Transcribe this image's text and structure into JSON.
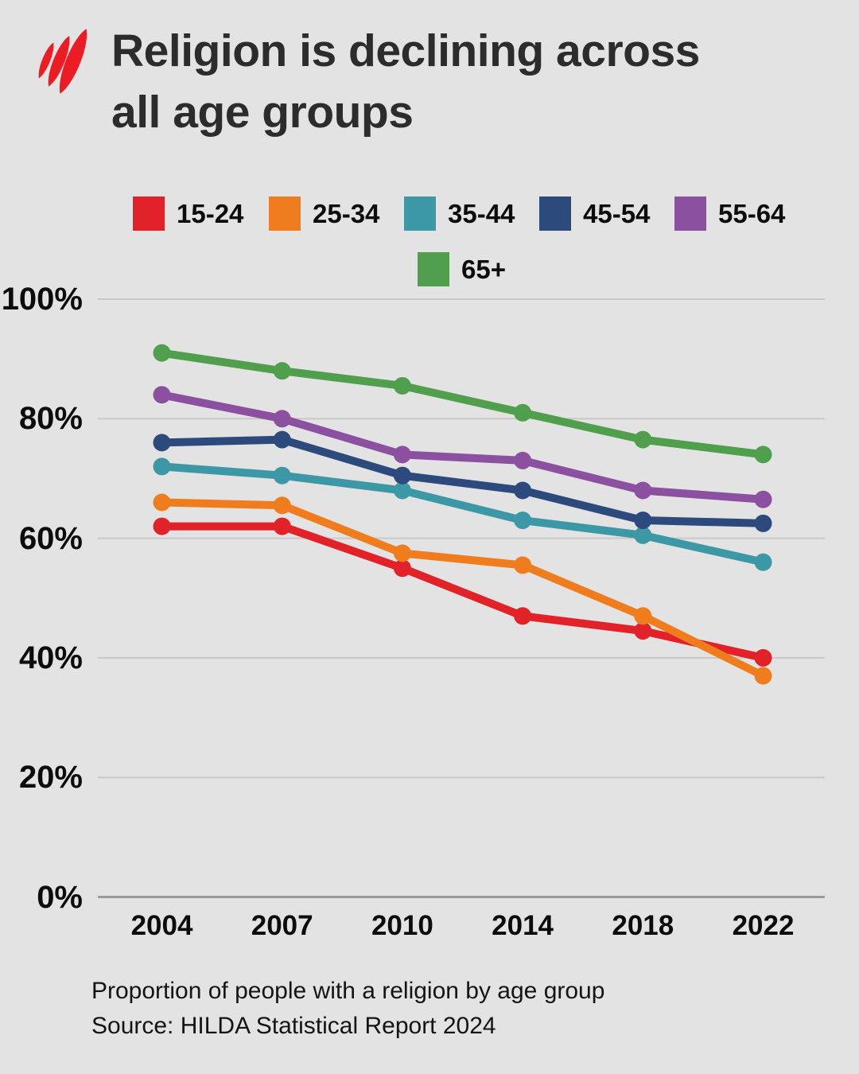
{
  "header": {
    "title_line1": "Religion is declining across",
    "title_line2": "all age groups",
    "logo_name": "sbs-logo"
  },
  "chart_data": {
    "type": "line",
    "title": "Religion is declining across all age groups",
    "xlabel": "",
    "ylabel": "",
    "ylim": [
      0,
      100
    ],
    "grid": true,
    "legend_position": "top",
    "categories": [
      "2004",
      "2007",
      "2010",
      "2014",
      "2018",
      "2022"
    ],
    "series": [
      {
        "name": "15-24",
        "color": "#e12229",
        "values": [
          62,
          62,
          55,
          47,
          44.5,
          40
        ]
      },
      {
        "name": "25-34",
        "color": "#ef7d1e",
        "values": [
          66,
          65.5,
          57.5,
          55.5,
          47,
          37
        ]
      },
      {
        "name": "35-44",
        "color": "#3d98a6",
        "values": [
          72,
          70.5,
          68,
          63,
          60.5,
          56
        ]
      },
      {
        "name": "45-54",
        "color": "#2c4a7c",
        "values": [
          76,
          76.5,
          70.5,
          68,
          63,
          62.5
        ]
      },
      {
        "name": "55-64",
        "color": "#8b509f",
        "values": [
          84,
          80,
          74,
          73,
          68,
          66.5
        ]
      },
      {
        "name": "65+",
        "color": "#4f9f4c",
        "values": [
          91,
          88,
          85.5,
          81,
          76.5,
          74
        ]
      }
    ],
    "y_ticks": [
      {
        "label": "100%",
        "value": 100
      },
      {
        "label": "80%",
        "value": 80
      },
      {
        "label": "60%",
        "value": 60
      },
      {
        "label": "40%",
        "value": 40
      },
      {
        "label": "20%",
        "value": 20
      },
      {
        "label": "0%",
        "value": 0
      }
    ]
  },
  "footer": {
    "caption": "Proportion of people with a religion by age group",
    "source": "Source: HILDA Statistical Report 2024"
  },
  "colors": {
    "background": "#e3e3e3",
    "title_text": "#2c2c2c",
    "gridline": "#c9c9c9",
    "zero_axis": "#9a9a9a",
    "logo_red": "#ec1c24"
  }
}
